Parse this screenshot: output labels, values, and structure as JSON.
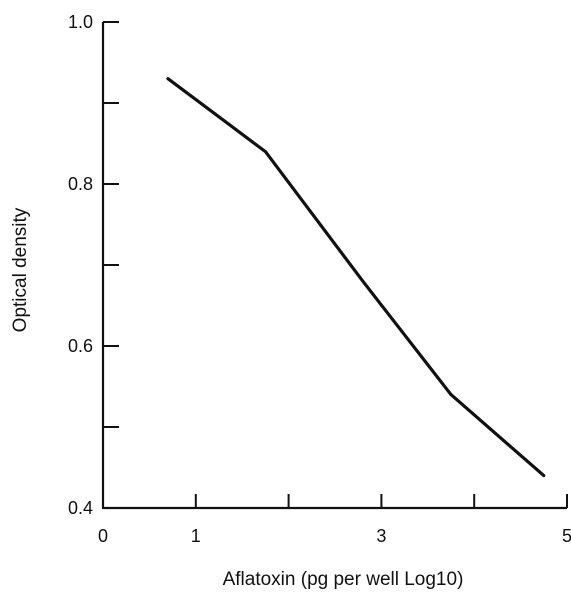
{
  "chart_data": {
    "type": "line",
    "title": "",
    "xlabel": "Aflatoxin (pg per well Log10)",
    "ylabel": "Optical density",
    "xlim": [
      0,
      5
    ],
    "ylim": [
      0.4,
      1.0
    ],
    "x_ticks": [
      0,
      1,
      2,
      3,
      4,
      5
    ],
    "x_tick_labels": [
      "0",
      "1",
      "",
      "3",
      "",
      "5"
    ],
    "y_ticks": [
      0.4,
      0.5,
      0.6,
      0.7,
      0.8,
      0.9,
      1.0
    ],
    "y_tick_labels": [
      "0.4",
      "",
      "0.6",
      "",
      "0.8",
      "",
      "1.0"
    ],
    "grid": false,
    "legend": "none",
    "series": [
      {
        "x": [
          0.7,
          1.75,
          2.8,
          3.75,
          4.75
        ],
        "y": [
          0.93,
          0.84,
          0.68,
          0.54,
          0.44
        ]
      }
    ],
    "colors": {
      "line": "#111111",
      "axis": "#111111"
    }
  }
}
